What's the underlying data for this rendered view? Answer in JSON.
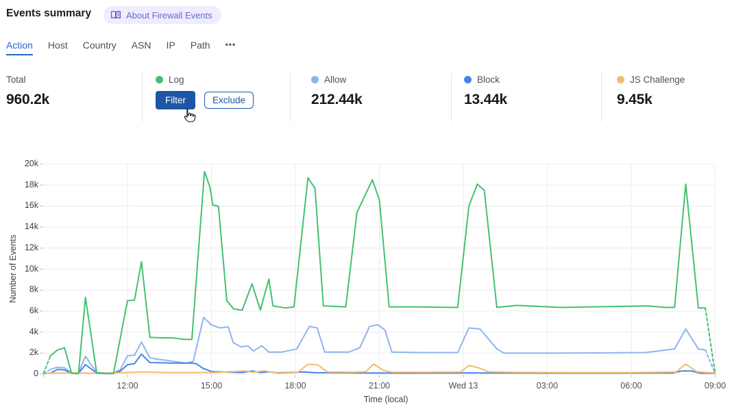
{
  "header": {
    "title": "Events summary",
    "about_label": "About Firewall Events"
  },
  "tabs": [
    {
      "id": "action",
      "label": "Action",
      "active": true
    },
    {
      "id": "host",
      "label": "Host",
      "active": false
    },
    {
      "id": "country",
      "label": "Country",
      "active": false
    },
    {
      "id": "asn",
      "label": "ASN",
      "active": false
    },
    {
      "id": "ip",
      "label": "IP",
      "active": false
    },
    {
      "id": "path",
      "label": "Path",
      "active": false
    },
    {
      "id": "more",
      "label": "•••",
      "active": false
    }
  ],
  "stats": {
    "cards": [
      {
        "label": "Total",
        "value": "960.2k"
      },
      {
        "label": "Log",
        "dot_color": "#41c16e",
        "filter_label": "Filter",
        "exclude_label": "Exclude"
      },
      {
        "label": "Allow",
        "value": "212.44k",
        "dot_color": "#8db4f0"
      },
      {
        "label": "Block",
        "value": "13.44k",
        "dot_color": "#4385ea"
      },
      {
        "label": "JS Challenge",
        "value": "9.45k",
        "dot_color": "#f2bc6e"
      }
    ]
  },
  "chart_data": {
    "type": "line",
    "xlabel": "Time (local)",
    "ylabel": "Number of Events",
    "x_unit": "hours after 09:00 local",
    "xlim": [
      0,
      24
    ],
    "ylim_k": [
      0,
      20
    ],
    "grid": true,
    "x_ticks": [
      {
        "t": 3,
        "label": "12:00"
      },
      {
        "t": 6,
        "label": "15:00"
      },
      {
        "t": 9,
        "label": "18:00"
      },
      {
        "t": 12,
        "label": "21:00"
      },
      {
        "t": 15,
        "label": "Wed 13"
      },
      {
        "t": 18,
        "label": "03:00"
      },
      {
        "t": 21,
        "label": "06:00"
      },
      {
        "t": 24,
        "label": "09:00"
      }
    ],
    "y_ticks": [
      {
        "v": 0,
        "label": "0"
      },
      {
        "v": 2,
        "label": "2k"
      },
      {
        "v": 4,
        "label": "4k"
      },
      {
        "v": 6,
        "label": "6k"
      },
      {
        "v": 8,
        "label": "8k"
      },
      {
        "v": 10,
        "label": "10k"
      },
      {
        "v": 12,
        "label": "12k"
      },
      {
        "v": 14,
        "label": "14k"
      },
      {
        "v": 16,
        "label": "16k"
      },
      {
        "v": 18,
        "label": "18k"
      },
      {
        "v": 20,
        "label": "20k"
      }
    ],
    "value_unit": "thousands of events",
    "series": [
      {
        "name": "Allow",
        "color": "#8db4f0",
        "dash_head": true,
        "dash_tail": true,
        "points": [
          [
            0,
            0.05
          ],
          [
            0.25,
            0.45
          ],
          [
            0.5,
            0.65
          ],
          [
            0.75,
            0.6
          ],
          [
            1.0,
            0.1
          ],
          [
            1.25,
            0.1
          ],
          [
            1.5,
            1.7
          ],
          [
            1.9,
            0.15
          ],
          [
            2.5,
            0.1
          ],
          [
            2.75,
            0.45
          ],
          [
            3.0,
            1.75
          ],
          [
            3.25,
            1.8
          ],
          [
            3.5,
            3.05
          ],
          [
            3.8,
            1.55
          ],
          [
            4.1,
            1.4
          ],
          [
            4.45,
            1.3
          ],
          [
            4.8,
            1.15
          ],
          [
            5.1,
            1.05
          ],
          [
            5.35,
            1.2
          ],
          [
            5.72,
            5.4
          ],
          [
            6.0,
            4.7
          ],
          [
            6.3,
            4.4
          ],
          [
            6.6,
            4.5
          ],
          [
            6.78,
            3.0
          ],
          [
            7.05,
            2.6
          ],
          [
            7.3,
            2.7
          ],
          [
            7.5,
            2.2
          ],
          [
            7.8,
            2.7
          ],
          [
            8.05,
            2.1
          ],
          [
            8.5,
            2.1
          ],
          [
            9.05,
            2.4
          ],
          [
            9.5,
            4.55
          ],
          [
            9.78,
            4.4
          ],
          [
            10.05,
            2.1
          ],
          [
            10.9,
            2.1
          ],
          [
            11.3,
            2.5
          ],
          [
            11.65,
            4.55
          ],
          [
            11.95,
            4.7
          ],
          [
            12.2,
            4.2
          ],
          [
            12.45,
            2.1
          ],
          [
            13.5,
            2.05
          ],
          [
            14.8,
            2.05
          ],
          [
            15.2,
            4.4
          ],
          [
            15.6,
            4.3
          ],
          [
            16.2,
            2.4
          ],
          [
            16.45,
            2.0
          ],
          [
            18.5,
            2.0
          ],
          [
            21.5,
            2.05
          ],
          [
            22.55,
            2.4
          ],
          [
            22.95,
            4.3
          ],
          [
            23.4,
            2.4
          ],
          [
            23.65,
            2.3
          ],
          [
            24,
            0.05
          ]
        ]
      },
      {
        "name": "Block",
        "color": "#4385ea",
        "dash_head": true,
        "dash_tail": false,
        "points": [
          [
            0,
            0.05
          ],
          [
            0.25,
            0.1
          ],
          [
            0.5,
            0.45
          ],
          [
            0.75,
            0.4
          ],
          [
            1.0,
            0.08
          ],
          [
            1.25,
            0.08
          ],
          [
            1.5,
            0.9
          ],
          [
            1.9,
            0.1
          ],
          [
            2.5,
            0.08
          ],
          [
            2.75,
            0.3
          ],
          [
            3.0,
            0.9
          ],
          [
            3.25,
            1.0
          ],
          [
            3.5,
            1.9
          ],
          [
            3.8,
            1.1
          ],
          [
            4.2,
            1.08
          ],
          [
            4.7,
            1.05
          ],
          [
            5.2,
            1.05
          ],
          [
            5.45,
            1.0
          ],
          [
            5.7,
            0.55
          ],
          [
            6.0,
            0.25
          ],
          [
            6.5,
            0.2
          ],
          [
            7.1,
            0.15
          ],
          [
            7.45,
            0.3
          ],
          [
            7.75,
            0.15
          ],
          [
            8.05,
            0.22
          ],
          [
            8.4,
            0.12
          ],
          [
            9.3,
            0.2
          ],
          [
            9.7,
            0.14
          ],
          [
            11.0,
            0.12
          ],
          [
            13.0,
            0.1
          ],
          [
            15.3,
            0.12
          ],
          [
            18.0,
            0.1
          ],
          [
            20.0,
            0.1
          ],
          [
            22.5,
            0.12
          ],
          [
            22.8,
            0.3
          ],
          [
            23.15,
            0.3
          ],
          [
            23.45,
            0.1
          ],
          [
            24,
            0.08
          ]
        ]
      },
      {
        "name": "JS Challenge",
        "color": "#f2bc6e",
        "dash_head": false,
        "dash_tail": false,
        "points": [
          [
            0,
            0.1
          ],
          [
            1.0,
            0.12
          ],
          [
            2.0,
            0.08
          ],
          [
            3.0,
            0.15
          ],
          [
            3.6,
            0.2
          ],
          [
            4.5,
            0.15
          ],
          [
            6.0,
            0.15
          ],
          [
            7.2,
            0.3
          ],
          [
            7.5,
            0.18
          ],
          [
            7.9,
            0.32
          ],
          [
            8.2,
            0.15
          ],
          [
            9.1,
            0.2
          ],
          [
            9.45,
            0.95
          ],
          [
            9.8,
            0.88
          ],
          [
            10.15,
            0.2
          ],
          [
            11.0,
            0.18
          ],
          [
            11.5,
            0.22
          ],
          [
            11.8,
            0.95
          ],
          [
            12.15,
            0.35
          ],
          [
            12.45,
            0.18
          ],
          [
            13.5,
            0.18
          ],
          [
            14.9,
            0.2
          ],
          [
            15.2,
            0.82
          ],
          [
            15.55,
            0.6
          ],
          [
            15.9,
            0.22
          ],
          [
            17.0,
            0.16
          ],
          [
            19.0,
            0.15
          ],
          [
            21.0,
            0.15
          ],
          [
            22.6,
            0.2
          ],
          [
            22.95,
            0.95
          ],
          [
            23.35,
            0.22
          ],
          [
            24,
            0.12
          ]
        ]
      },
      {
        "name": "Log",
        "color": "#41c16e",
        "dash_head": true,
        "dash_tail": true,
        "points": [
          [
            0,
            0.05
          ],
          [
            0.25,
            1.75
          ],
          [
            0.5,
            2.3
          ],
          [
            0.75,
            2.5
          ],
          [
            1.0,
            0.1
          ],
          [
            1.25,
            0.05
          ],
          [
            1.5,
            7.3
          ],
          [
            1.9,
            0.1
          ],
          [
            2.2,
            0.05
          ],
          [
            2.5,
            0.05
          ],
          [
            3.0,
            7.0
          ],
          [
            3.25,
            7.05
          ],
          [
            3.5,
            10.7
          ],
          [
            3.8,
            3.5
          ],
          [
            4.2,
            3.45
          ],
          [
            4.6,
            3.45
          ],
          [
            5.05,
            3.3
          ],
          [
            5.3,
            3.3
          ],
          [
            5.75,
            19.3
          ],
          [
            5.95,
            17.8
          ],
          [
            6.05,
            16.1
          ],
          [
            6.25,
            16.0
          ],
          [
            6.55,
            7.0
          ],
          [
            6.8,
            6.2
          ],
          [
            7.1,
            6.1
          ],
          [
            7.45,
            8.6
          ],
          [
            7.75,
            6.1
          ],
          [
            8.05,
            9.05
          ],
          [
            8.2,
            6.5
          ],
          [
            8.65,
            6.3
          ],
          [
            8.95,
            6.4
          ],
          [
            9.45,
            18.7
          ],
          [
            9.7,
            17.7
          ],
          [
            10.0,
            6.5
          ],
          [
            10.8,
            6.4
          ],
          [
            11.2,
            15.4
          ],
          [
            11.75,
            18.5
          ],
          [
            12.0,
            16.6
          ],
          [
            12.35,
            6.4
          ],
          [
            13.5,
            6.4
          ],
          [
            14.8,
            6.35
          ],
          [
            15.2,
            16.0
          ],
          [
            15.5,
            18.1
          ],
          [
            15.75,
            17.5
          ],
          [
            16.2,
            6.35
          ],
          [
            16.9,
            6.55
          ],
          [
            18.5,
            6.35
          ],
          [
            21.6,
            6.5
          ],
          [
            22.2,
            6.35
          ],
          [
            22.55,
            6.35
          ],
          [
            22.95,
            18.1
          ],
          [
            23.4,
            6.3
          ],
          [
            23.65,
            6.3
          ],
          [
            24,
            0.05
          ]
        ]
      }
    ]
  }
}
